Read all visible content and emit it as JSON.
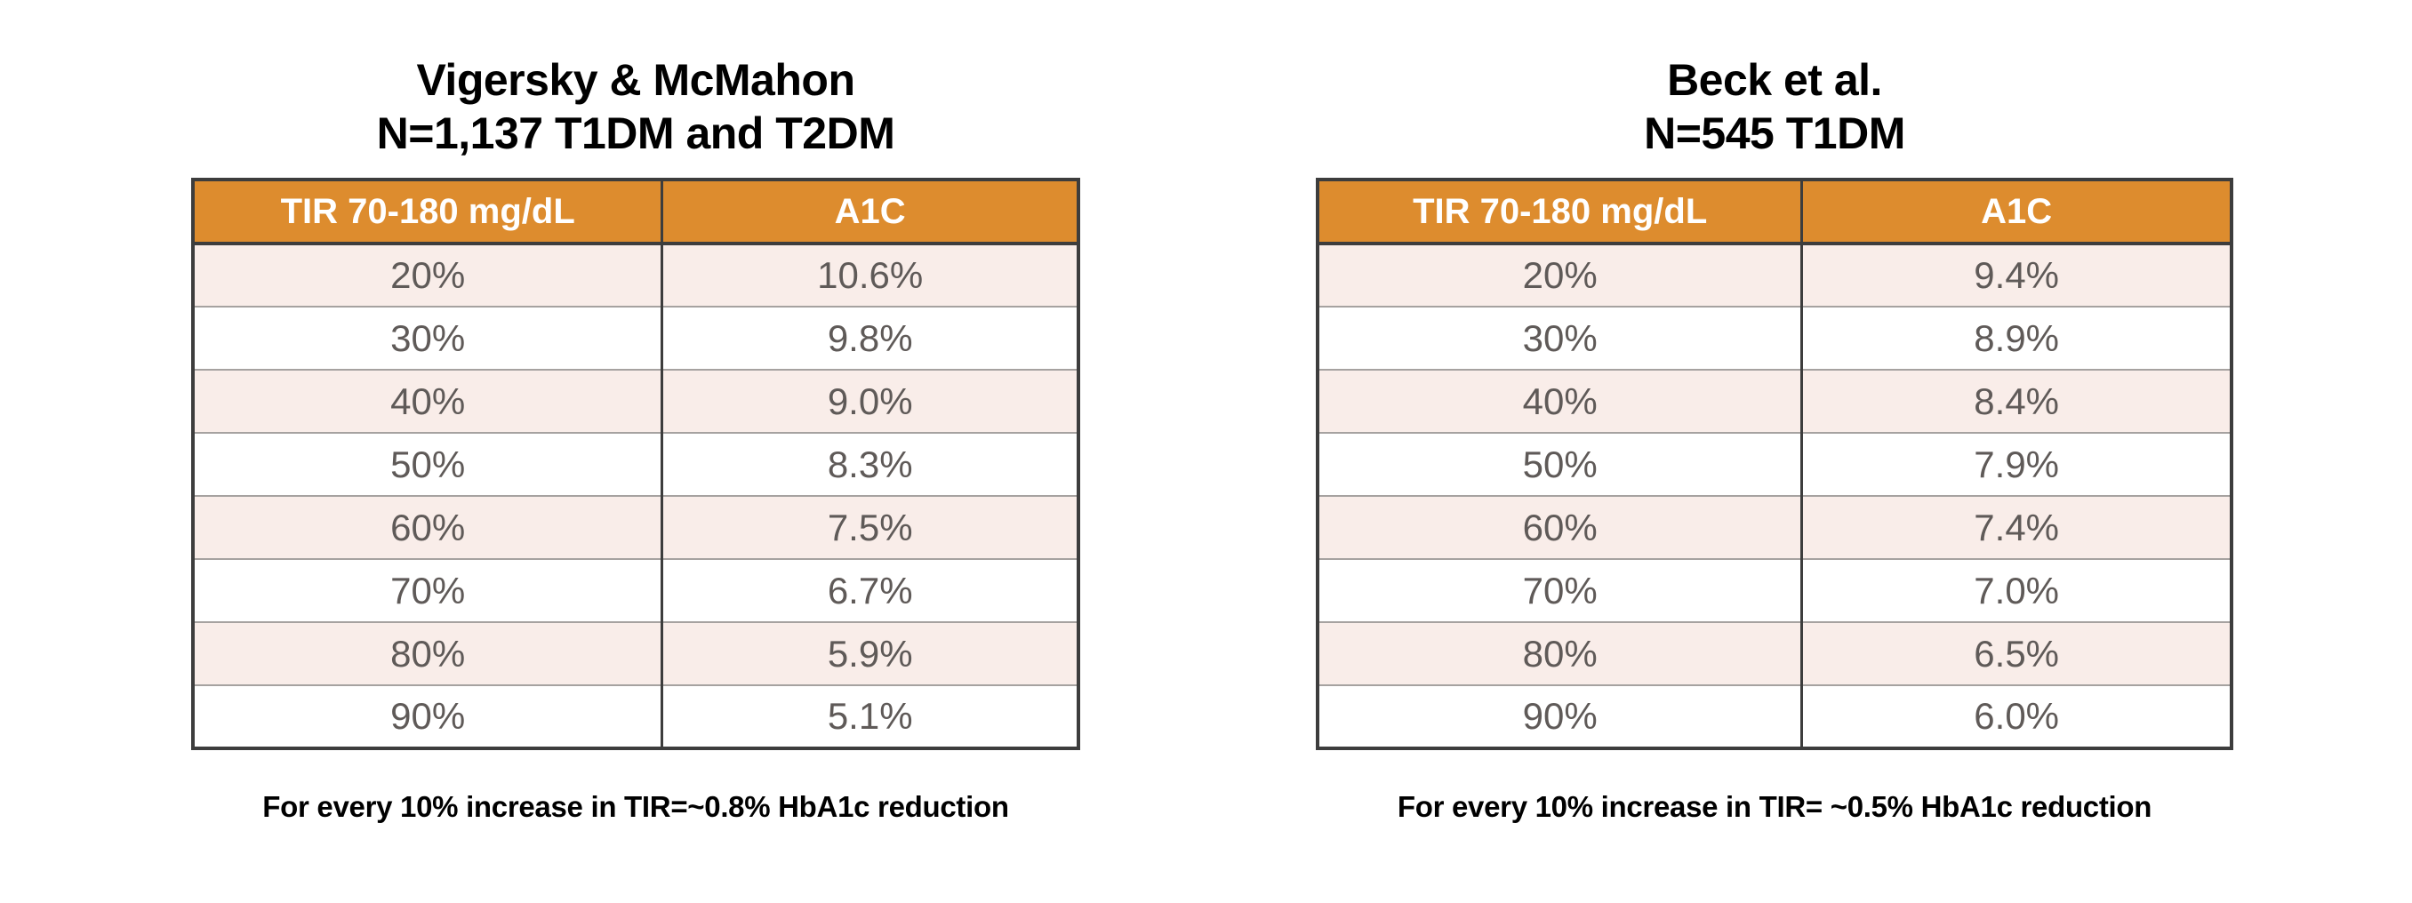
{
  "colors": {
    "header_bg": "#DD8C2E",
    "header_text": "#FFFFFF",
    "row_alt_bg": "#F9EDE9",
    "row_bg": "#FFFFFF",
    "border_dark": "#3D3D3D",
    "row_separator": "#A6A2A0",
    "cell_text": "#5F5A58",
    "title_text": "#000000"
  },
  "chart_data": [
    {
      "type": "table",
      "title": "Vigersky & McMahon",
      "subtitle": "N=1,137 T1DM and T2DM",
      "columns": [
        "TIR 70-180 mg/dL",
        "A1C"
      ],
      "rows": [
        [
          "20%",
          "10.6%"
        ],
        [
          "30%",
          "9.8%"
        ],
        [
          "40%",
          "9.0%"
        ],
        [
          "50%",
          "8.3%"
        ],
        [
          "60%",
          "7.5%"
        ],
        [
          "70%",
          "6.7%"
        ],
        [
          "80%",
          "5.9%"
        ],
        [
          "90%",
          "5.1%"
        ]
      ],
      "tir_percent": [
        20,
        30,
        40,
        50,
        60,
        70,
        80,
        90
      ],
      "a1c_percent": [
        10.6,
        9.8,
        9.0,
        8.3,
        7.5,
        6.7,
        5.9,
        5.1
      ],
      "caption": "For every 10% increase in TIR=~0.8% HbA1c reduction"
    },
    {
      "type": "table",
      "title": "Beck et al.",
      "subtitle": "N=545 T1DM",
      "columns": [
        "TIR 70-180 mg/dL",
        "A1C"
      ],
      "rows": [
        [
          "20%",
          "9.4%"
        ],
        [
          "30%",
          "8.9%"
        ],
        [
          "40%",
          "8.4%"
        ],
        [
          "50%",
          "7.9%"
        ],
        [
          "60%",
          "7.4%"
        ],
        [
          "70%",
          "7.0%"
        ],
        [
          "80%",
          "6.5%"
        ],
        [
          "90%",
          "6.0%"
        ]
      ],
      "tir_percent": [
        20,
        30,
        40,
        50,
        60,
        70,
        80,
        90
      ],
      "a1c_percent": [
        9.4,
        8.9,
        8.4,
        7.9,
        7.4,
        7.0,
        6.5,
        6.0
      ],
      "caption": "For every 10% increase in TIR= ~0.5% HbA1c reduction"
    }
  ]
}
